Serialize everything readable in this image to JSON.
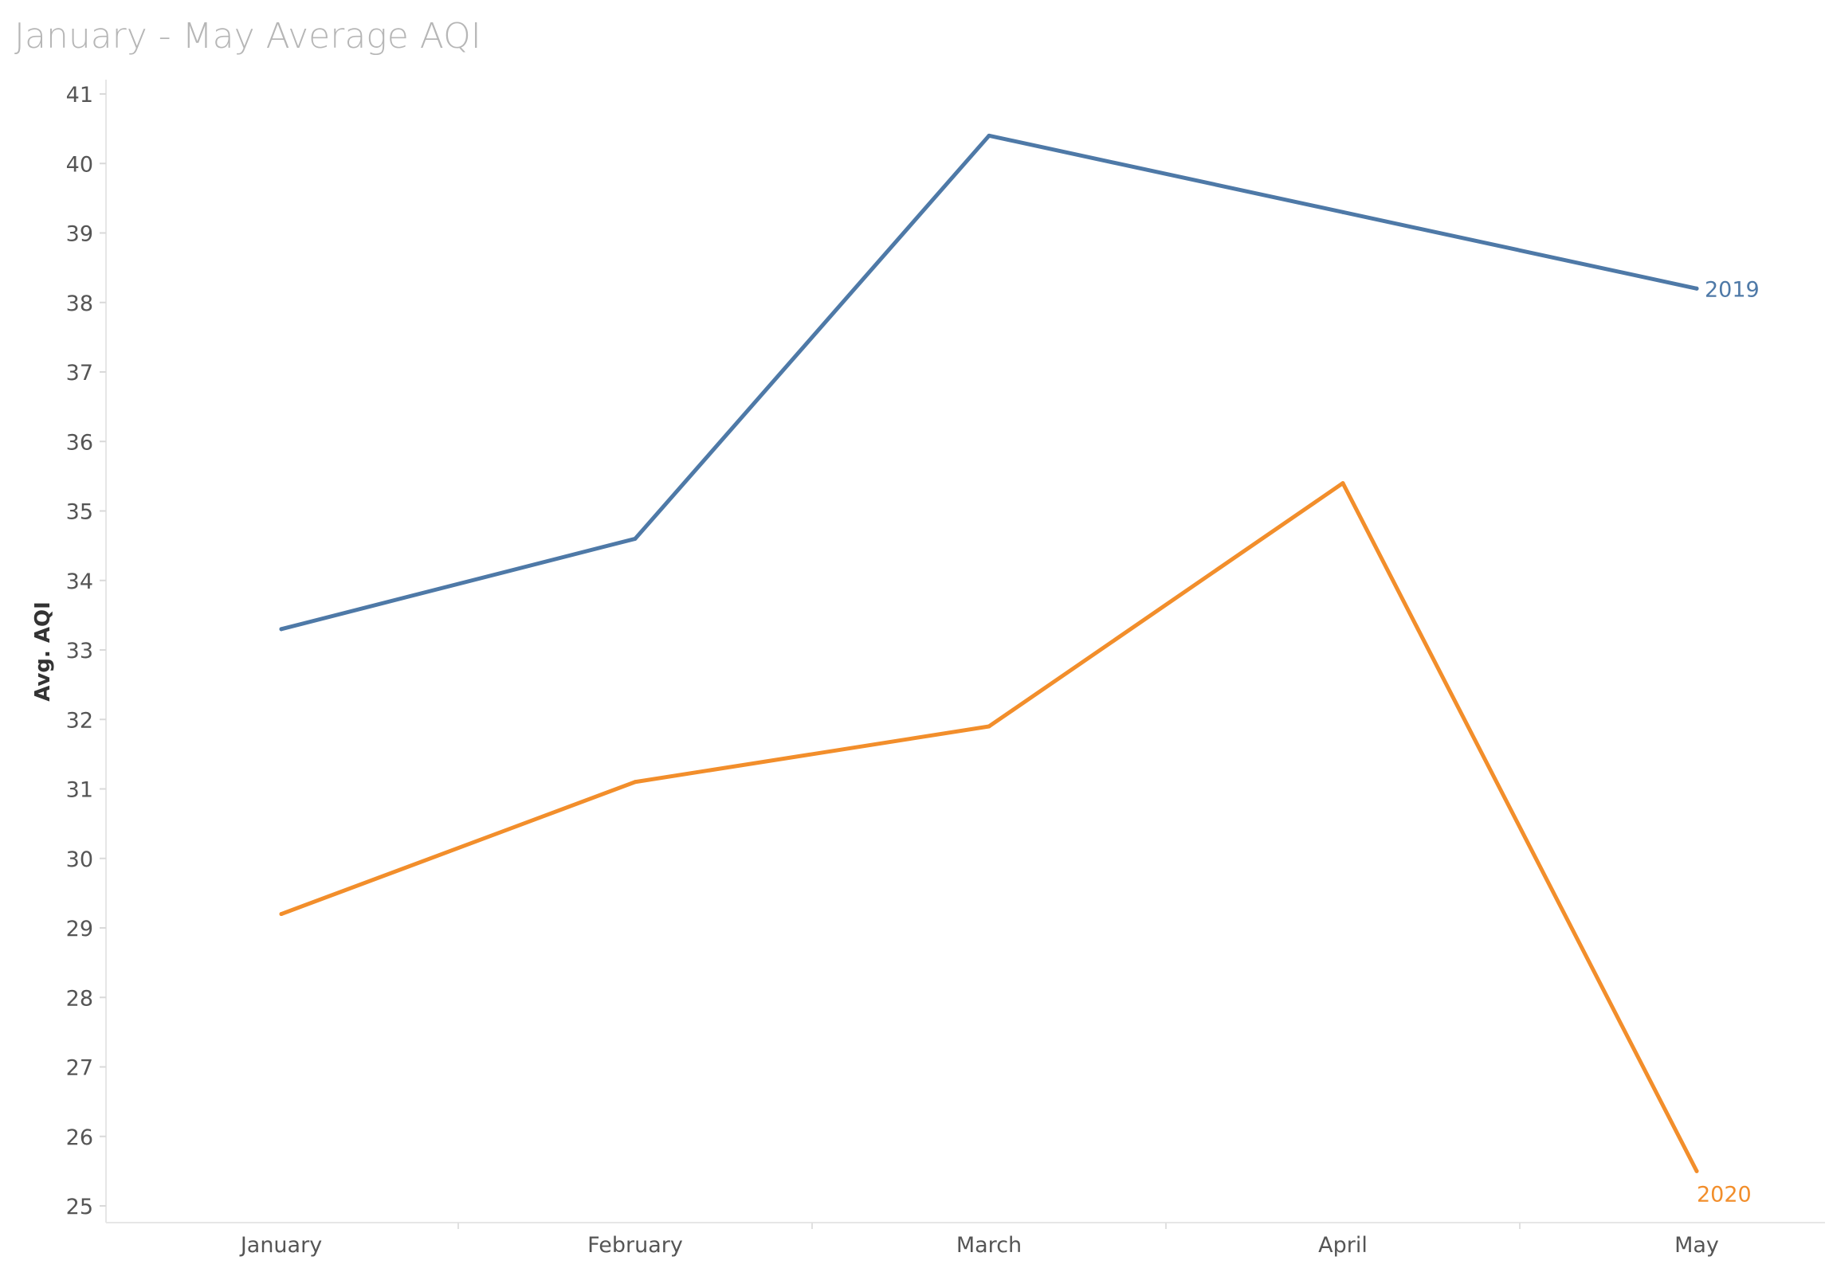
{
  "chart_data": {
    "type": "line",
    "title": "January - May Average AQI",
    "xlabel": "",
    "ylabel": "Avg. AQI",
    "categories": [
      "January",
      "February",
      "March",
      "April",
      "May"
    ],
    "ylim": [
      25,
      41
    ],
    "yticks": [
      25,
      26,
      27,
      28,
      29,
      30,
      31,
      32,
      33,
      34,
      35,
      36,
      37,
      38,
      39,
      40,
      41
    ],
    "grid": false,
    "legend": "end-of-line labels",
    "series": [
      {
        "name": "2019",
        "color": "#4e79a7",
        "values": [
          33.3,
          34.6,
          40.4,
          39.3,
          38.2
        ]
      },
      {
        "name": "2020",
        "color": "#f28e2b",
        "values": [
          29.2,
          31.1,
          31.9,
          35.4,
          25.5
        ]
      }
    ]
  }
}
